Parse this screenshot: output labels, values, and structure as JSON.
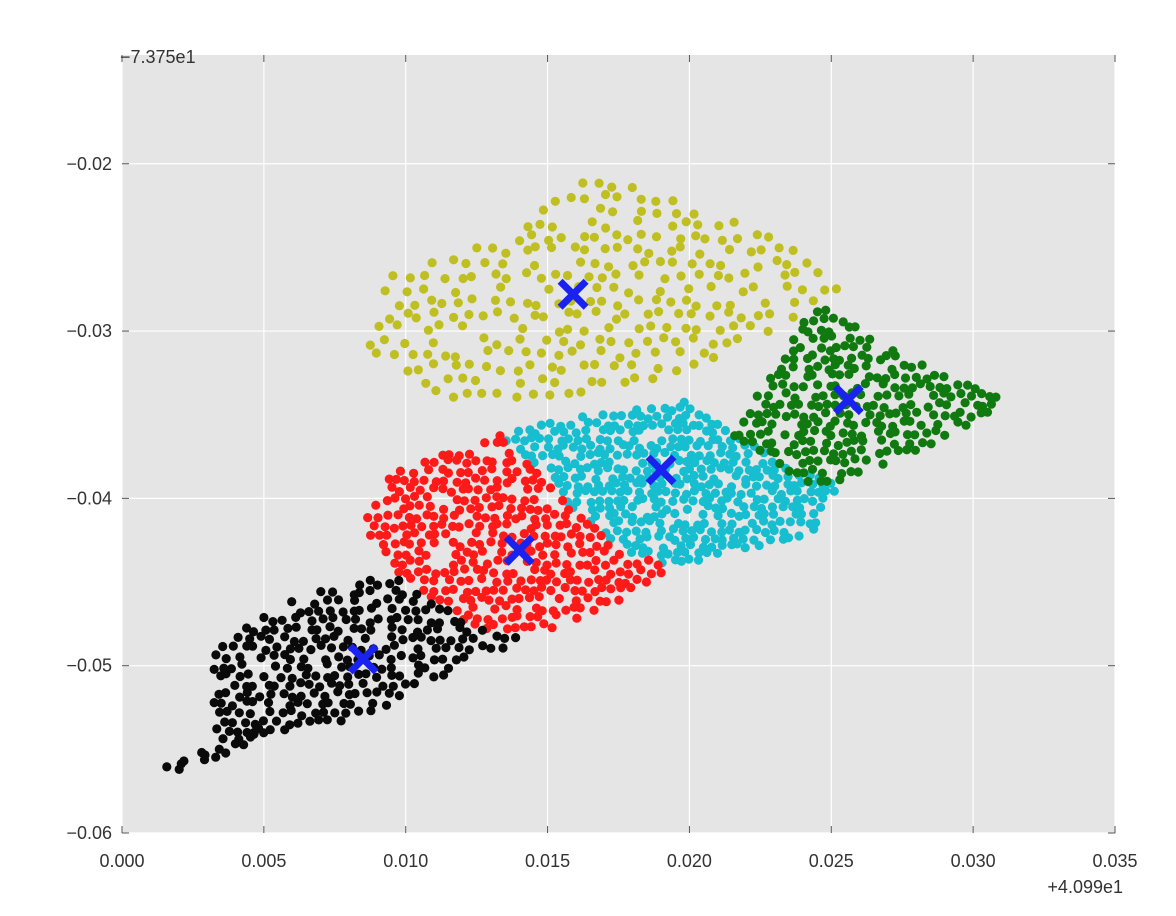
{
  "chart_data": {
    "type": "scatter",
    "title": "",
    "xlabel": "",
    "ylabel": "",
    "xlim": [
      0.0,
      0.035
    ],
    "ylim": [
      -0.06,
      -0.0135
    ],
    "x_offset_label": "+4.099e1",
    "y_offset_label": "−7.375e1",
    "x_ticks": [
      {
        "value": 0.0,
        "label": "0.000"
      },
      {
        "value": 0.005,
        "label": "0.005"
      },
      {
        "value": 0.01,
        "label": "0.010"
      },
      {
        "value": 0.015,
        "label": "0.015"
      },
      {
        "value": 0.02,
        "label": "0.020"
      },
      {
        "value": 0.025,
        "label": "0.025"
      },
      {
        "value": 0.03,
        "label": "0.030"
      },
      {
        "value": 0.035,
        "label": "0.035"
      }
    ],
    "y_ticks": [
      {
        "value": -0.02,
        "label": "−0.02"
      },
      {
        "value": -0.03,
        "label": "−0.03"
      },
      {
        "value": -0.04,
        "label": "−0.04"
      },
      {
        "value": -0.05,
        "label": "−0.05"
      },
      {
        "value": -0.06,
        "label": "−0.06"
      }
    ],
    "grid": true,
    "background": "#e5e5e5",
    "series": [
      {
        "color": "#bfbf21",
        "region": [
          [
            0.0095,
            -0.0265
          ],
          [
            0.0135,
            -0.0245
          ],
          [
            0.0165,
            -0.0205
          ],
          [
            0.0235,
            -0.0245
          ],
          [
            0.0255,
            -0.0275
          ],
          [
            0.0225,
            -0.0305
          ],
          [
            0.0195,
            -0.0325
          ],
          [
            0.0165,
            -0.034
          ],
          [
            0.0115,
            -0.0345
          ],
          [
            0.0085,
            -0.031
          ]
        ],
        "cols": 30,
        "rows": 18
      },
      {
        "color": "#17becf",
        "region": [
          [
            0.0133,
            -0.0362
          ],
          [
            0.0158,
            -0.0352
          ],
          [
            0.0198,
            -0.0342
          ],
          [
            0.0212,
            -0.0357
          ],
          [
            0.0232,
            -0.0377
          ],
          [
            0.0252,
            -0.0392
          ],
          [
            0.0245,
            -0.0422
          ],
          [
            0.0215,
            -0.0432
          ],
          [
            0.0195,
            -0.0442
          ],
          [
            0.0178,
            -0.0432
          ],
          [
            0.0162,
            -0.0412
          ],
          [
            0.0152,
            -0.0392
          ]
        ],
        "cols": 36,
        "rows": 22
      },
      {
        "color": "#107a10",
        "region": [
          [
            0.0225,
            -0.0335
          ],
          [
            0.0245,
            -0.0282
          ],
          [
            0.0275,
            -0.0315
          ],
          [
            0.0312,
            -0.0342
          ],
          [
            0.0282,
            -0.0372
          ],
          [
            0.0245,
            -0.0395
          ],
          [
            0.0215,
            -0.0362
          ]
        ],
        "cols": 30,
        "rows": 20
      },
      {
        "color": "#ff1a1a",
        "region": [
          [
            0.0085,
            -0.0415
          ],
          [
            0.0095,
            -0.0385
          ],
          [
            0.0133,
            -0.0362
          ],
          [
            0.0152,
            -0.0392
          ],
          [
            0.0162,
            -0.0412
          ],
          [
            0.0178,
            -0.0432
          ],
          [
            0.0195,
            -0.0442
          ],
          [
            0.0175,
            -0.0462
          ],
          [
            0.0145,
            -0.0482
          ],
          [
            0.0125,
            -0.0478
          ],
          [
            0.0095,
            -0.0445
          ]
        ],
        "cols": 32,
        "rows": 22
      },
      {
        "color": "#0a0a0a",
        "region": [
          [
            0.0032,
            -0.0488
          ],
          [
            0.0062,
            -0.0458
          ],
          [
            0.0095,
            -0.0445
          ],
          [
            0.0125,
            -0.0478
          ],
          [
            0.0145,
            -0.0485
          ],
          [
            0.0125,
            -0.0495
          ],
          [
            0.0105,
            -0.0515
          ],
          [
            0.0078,
            -0.0535
          ],
          [
            0.0055,
            -0.054
          ],
          [
            0.0032,
            -0.0545
          ]
        ],
        "cols": 30,
        "rows": 18
      }
    ],
    "tails": [
      {
        "color": "#0a0a0a",
        "from": [
          0.0018,
          -0.0562
        ],
        "to": [
          0.0052,
          -0.0538
        ],
        "count": 18,
        "width": 0.0008
      }
    ],
    "centroids": {
      "color": "#1a22f0",
      "marker": "x",
      "points": [
        {
          "x": 0.0159,
          "y": -0.0278
        },
        {
          "x": 0.019,
          "y": -0.0383
        },
        {
          "x": 0.0256,
          "y": -0.0341
        },
        {
          "x": 0.014,
          "y": -0.0431
        },
        {
          "x": 0.0085,
          "y": -0.0496
        }
      ]
    }
  }
}
